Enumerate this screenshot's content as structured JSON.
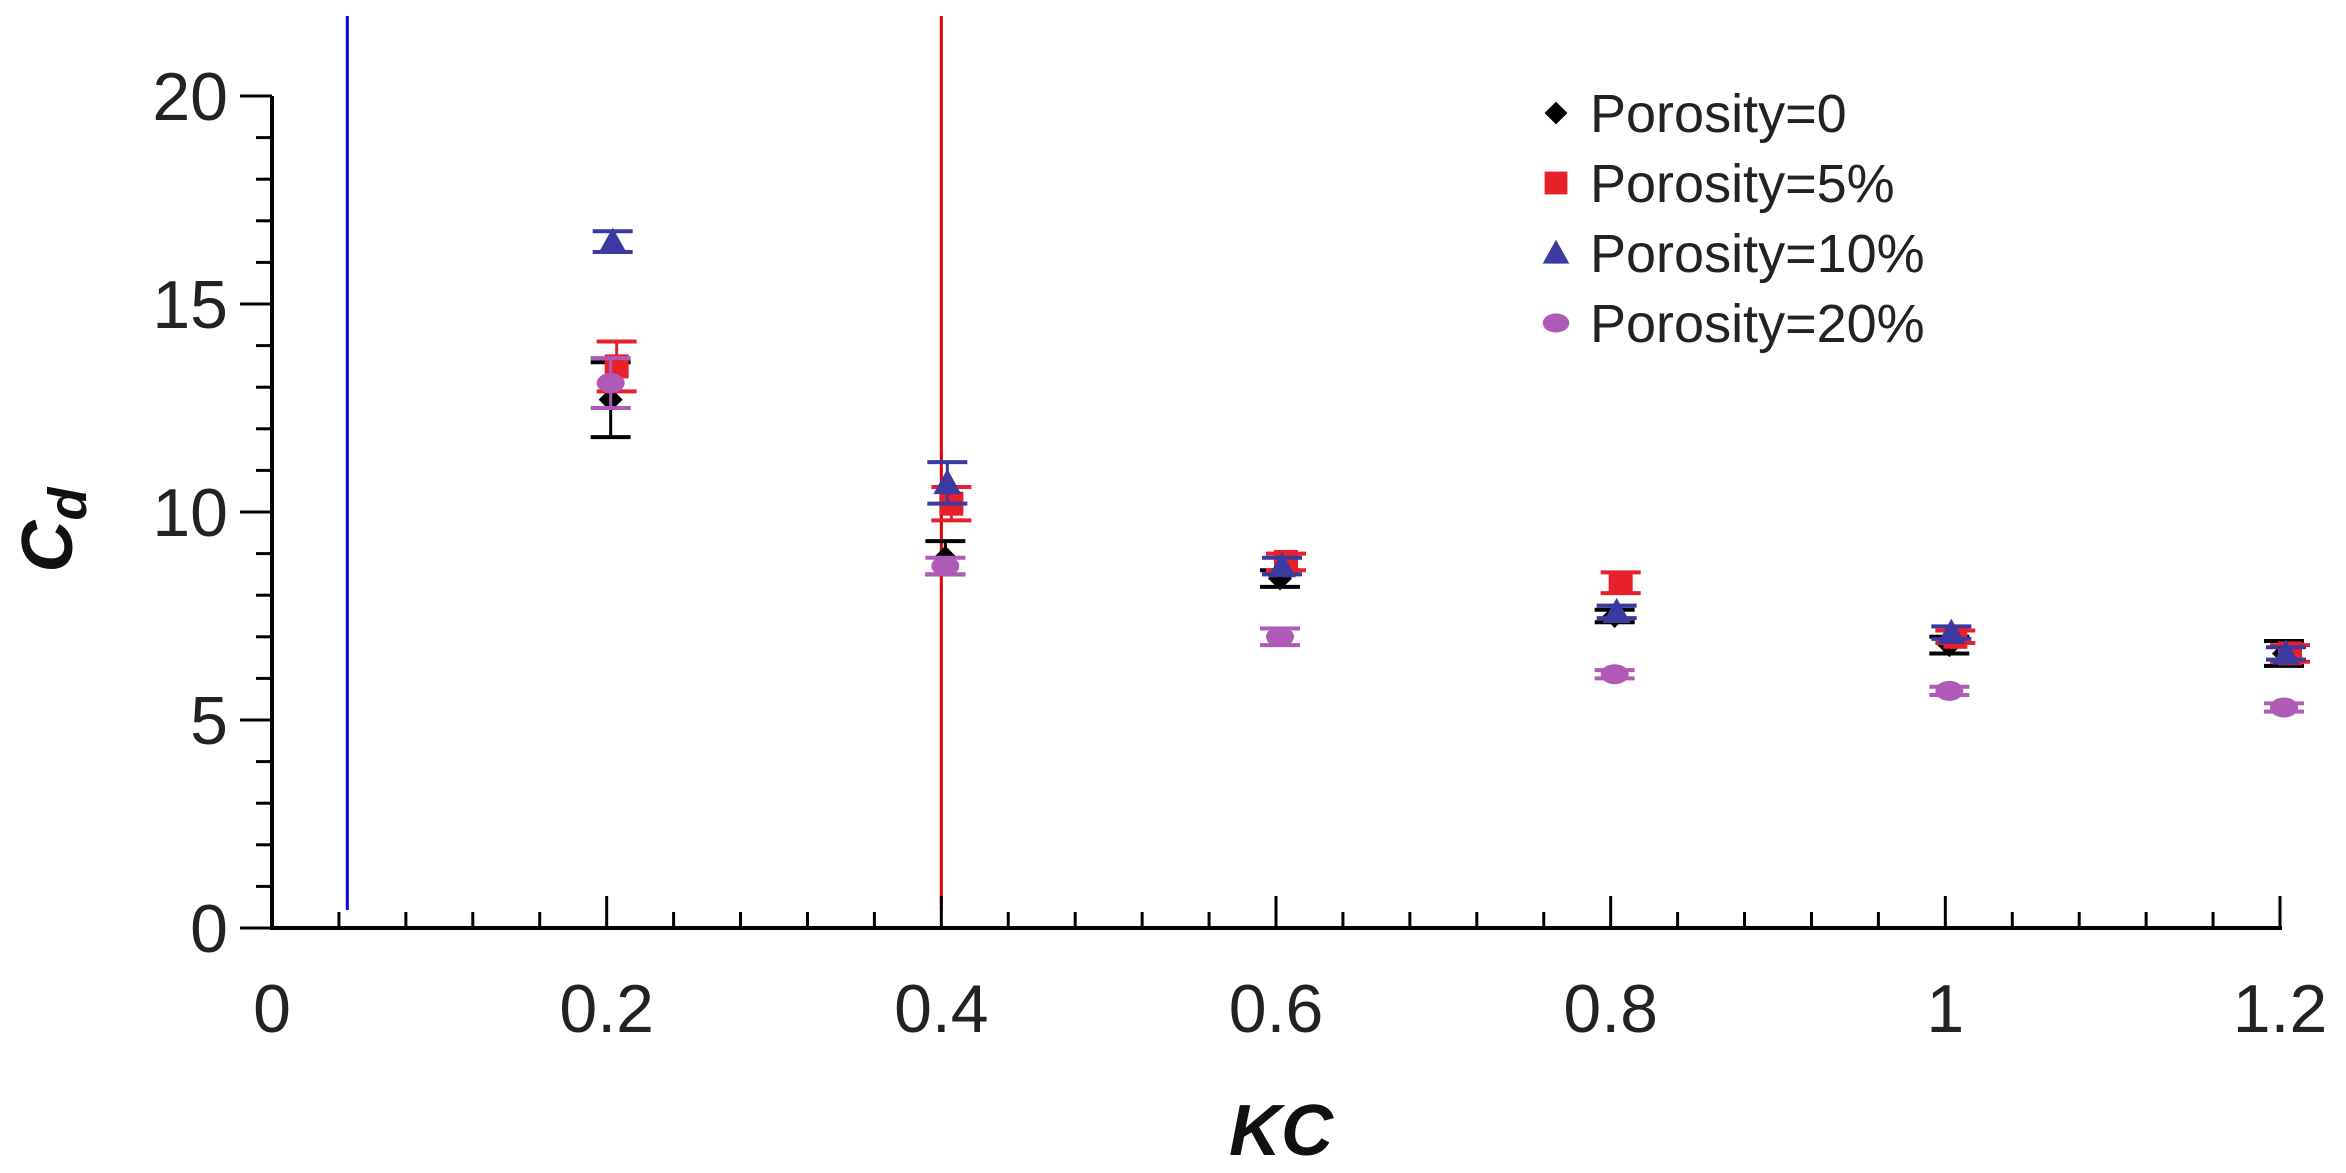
{
  "chart_data": {
    "type": "scatter",
    "title": "",
    "xlabel": "KC",
    "ylabel_main": "C",
    "ylabel_sub": "d",
    "xlim": [
      0,
      1.2
    ],
    "ylim": [
      0,
      20
    ],
    "xticks": [
      0,
      0.2,
      0.4,
      0.6,
      0.8,
      1.0,
      1.2
    ],
    "xtick_labels": [
      "0",
      "0.2",
      "0.4",
      "0.6",
      "0.8",
      "1",
      "1.2"
    ],
    "x_minor_step": 0.04,
    "yticks": [
      0,
      5,
      10,
      15,
      20
    ],
    "ytick_labels": [
      "0",
      "5",
      "10",
      "15",
      "20"
    ],
    "y_minor_step": 1,
    "grid": false,
    "legend_position": "top-right",
    "vertical_lines": [
      {
        "x": 0.045,
        "color": "#0000ee"
      },
      {
        "x": 0.4,
        "color": "#e00000"
      }
    ],
    "series": [
      {
        "name": "Porosity=0",
        "marker": "diamond",
        "color": "#000000",
        "x": [
          0.2,
          0.4,
          0.6,
          0.8,
          1.0,
          1.2
        ],
        "y": [
          12.7,
          8.9,
          8.4,
          7.5,
          6.8,
          6.6
        ],
        "err": [
          0.9,
          0.4,
          0.2,
          0.15,
          0.2,
          0.3
        ]
      },
      {
        "name": "Porosity=5%",
        "marker": "square",
        "color": "#e8202a",
        "x": [
          0.2,
          0.4,
          0.6,
          0.8,
          1.0,
          1.2
        ],
        "y": [
          13.5,
          10.2,
          8.8,
          8.3,
          7.0,
          6.6
        ],
        "err": [
          0.6,
          0.4,
          0.2,
          0.25,
          0.15,
          0.2
        ]
      },
      {
        "name": "Porosity=10%",
        "marker": "triangle",
        "color": "#3a3aa0",
        "x": [
          0.2,
          0.4,
          0.6,
          0.8,
          1.0,
          1.2
        ],
        "y": [
          16.5,
          10.7,
          8.7,
          7.6,
          7.1,
          6.6
        ],
        "err": [
          0.25,
          0.5,
          0.2,
          0.15,
          0.15,
          0.15
        ]
      },
      {
        "name": "Porosity=20%",
        "marker": "circle",
        "color": "#b05ab8",
        "x": [
          0.2,
          0.4,
          0.6,
          0.8,
          1.0,
          1.2
        ],
        "y": [
          13.1,
          8.7,
          7.0,
          6.1,
          5.7,
          5.3
        ],
        "err": [
          0.6,
          0.2,
          0.2,
          0.1,
          0.1,
          0.1
        ]
      }
    ]
  }
}
